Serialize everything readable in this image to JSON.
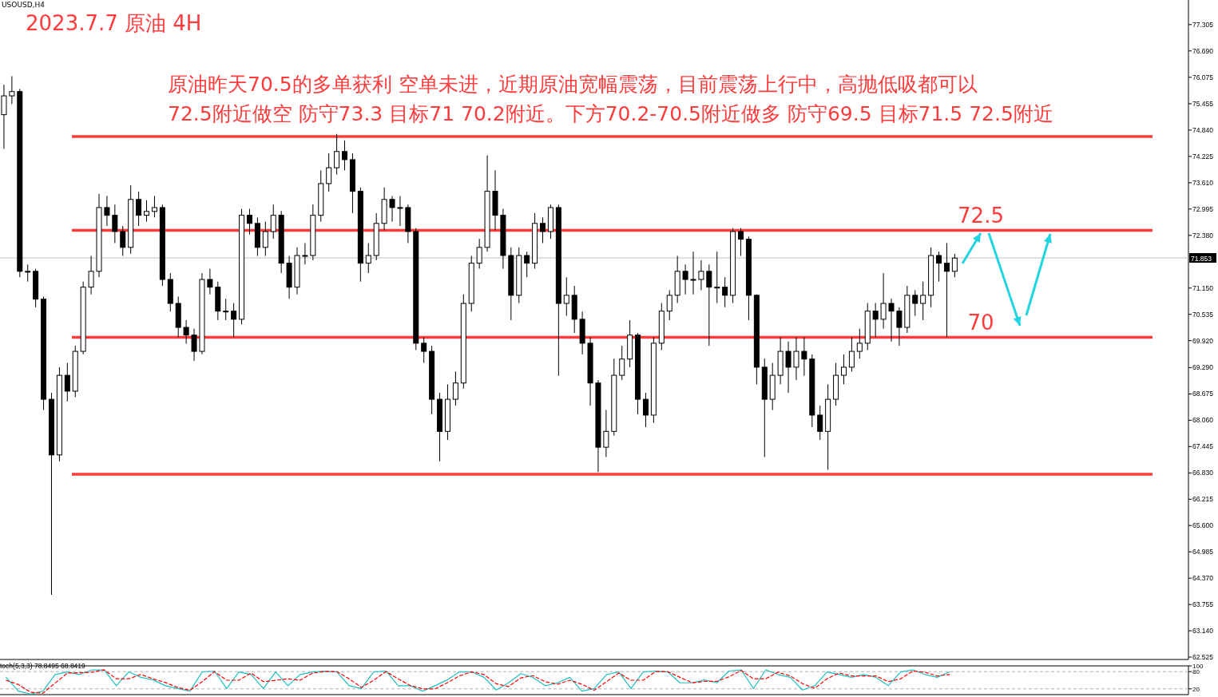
{
  "chart_data": [
    {
      "type": "candlestick",
      "title": "2023.7.7 原油 4H",
      "annotations": [
        "USOUSD,H4",
        "原油昨天70.5的多单获利 空单未进，近期原油宽幅震荡，目前震荡上行中，高抛低吸都可以",
        "72.5附近做空 防守73.3 目标71 70.2附近。下方70.2-70.5附近做多 防守69.5 目标71.5 72.5附近"
      ],
      "categories": [
        null,
        null,
        null,
        null,
        null,
        null,
        null,
        null,
        null,
        null,
        null,
        null,
        null,
        null,
        null,
        null,
        null,
        null,
        null,
        null,
        null,
        null,
        null,
        null,
        null,
        null,
        null,
        null,
        null,
        null,
        null,
        null,
        null,
        null,
        null,
        null,
        null,
        null,
        null,
        null,
        null,
        null,
        null,
        null,
        null,
        null,
        null,
        null,
        null,
        null,
        null,
        null,
        null,
        null,
        null,
        null,
        null,
        null,
        null,
        null,
        null,
        null,
        null,
        null,
        null,
        null,
        null,
        null,
        null,
        null,
        null,
        null,
        null,
        null,
        null,
        null,
        null,
        null,
        null,
        null,
        null,
        null,
        null,
        null,
        null,
        null,
        null,
        null,
        null,
        null,
        null,
        null,
        null,
        null,
        null,
        null,
        null,
        null,
        null,
        null,
        null,
        null,
        null,
        null,
        null,
        null,
        null,
        null,
        null,
        null,
        null,
        null,
        null,
        null,
        null,
        null,
        null,
        null,
        null,
        null,
        null,
        null,
        null,
        null,
        null,
        null,
        null,
        null,
        null,
        null,
        null,
        null,
        null,
        null,
        null,
        null,
        null,
        null,
        null,
        null,
        null,
        null,
        null,
        null,
        null,
        null,
        null,
        null,
        null,
        null
      ],
      "ohlc": [
        [
          75.2,
          75.9,
          74.4,
          75.64
        ],
        [
          75.64,
          76.1,
          75.45,
          75.74
        ],
        [
          75.74,
          75.8,
          71.4,
          71.54
        ],
        [
          71.54,
          71.7,
          71.3,
          71.54
        ],
        [
          71.54,
          71.6,
          70.7,
          70.89
        ],
        [
          70.89,
          70.95,
          68.3,
          68.55
        ],
        [
          68.55,
          68.7,
          63.98,
          67.25
        ],
        [
          67.25,
          69.3,
          67.1,
          69.11
        ],
        [
          69.11,
          69.4,
          68.5,
          68.74
        ],
        [
          68.74,
          69.8,
          68.6,
          69.67
        ],
        [
          69.67,
          71.3,
          69.6,
          71.17
        ],
        [
          71.17,
          71.9,
          71.0,
          71.54
        ],
        [
          71.54,
          73.35,
          71.4,
          73.03
        ],
        [
          73.03,
          73.3,
          72.6,
          72.85
        ],
        [
          72.85,
          73.1,
          72.2,
          72.47
        ],
        [
          72.47,
          72.6,
          71.9,
          72.1
        ],
        [
          72.1,
          73.55,
          71.95,
          73.22
        ],
        [
          73.22,
          73.4,
          72.6,
          72.85
        ],
        [
          72.85,
          73.2,
          72.7,
          72.94
        ],
        [
          72.94,
          73.3,
          72.8,
          73.03
        ],
        [
          73.03,
          73.1,
          71.2,
          71.35
        ],
        [
          71.35,
          71.5,
          70.6,
          70.79
        ],
        [
          70.79,
          70.95,
          70.0,
          70.23
        ],
        [
          70.23,
          70.4,
          69.85,
          70.05
        ],
        [
          70.05,
          70.2,
          69.45,
          69.67
        ],
        [
          69.67,
          71.5,
          69.6,
          71.35
        ],
        [
          71.35,
          71.6,
          71.0,
          71.17
        ],
        [
          71.17,
          71.3,
          70.4,
          70.61
        ],
        [
          70.61,
          70.9,
          70.4,
          70.61
        ],
        [
          70.61,
          70.8,
          70.0,
          70.42
        ],
        [
          70.42,
          73.0,
          70.3,
          72.85
        ],
        [
          72.85,
          73.0,
          72.4,
          72.66
        ],
        [
          72.66,
          72.8,
          71.9,
          72.1
        ],
        [
          72.1,
          72.7,
          71.9,
          72.47
        ],
        [
          72.47,
          73.1,
          72.3,
          72.85
        ],
        [
          72.85,
          72.95,
          71.5,
          71.73
        ],
        [
          71.73,
          71.9,
          70.9,
          71.17
        ],
        [
          71.17,
          72.1,
          71.0,
          71.91
        ],
        [
          71.91,
          72.2,
          71.7,
          71.91
        ],
        [
          71.91,
          73.1,
          71.8,
          72.85
        ],
        [
          72.85,
          73.9,
          72.7,
          73.59
        ],
        [
          73.59,
          74.3,
          73.4,
          73.96
        ],
        [
          73.96,
          74.75,
          73.8,
          74.34
        ],
        [
          74.34,
          74.6,
          73.9,
          74.15
        ],
        [
          74.15,
          74.3,
          72.9,
          73.41
        ],
        [
          73.41,
          73.5,
          71.3,
          71.73
        ],
        [
          71.73,
          72.2,
          71.5,
          71.91
        ],
        [
          71.91,
          72.9,
          71.8,
          72.66
        ],
        [
          72.66,
          73.5,
          72.5,
          73.22
        ],
        [
          73.22,
          73.3,
          72.7,
          73.03
        ],
        [
          73.03,
          73.3,
          72.6,
          73.03
        ],
        [
          73.03,
          73.1,
          72.2,
          72.47
        ],
        [
          72.47,
          72.55,
          69.7,
          69.86
        ],
        [
          69.86,
          70.0,
          69.4,
          69.67
        ],
        [
          69.67,
          69.8,
          68.2,
          68.55
        ],
        [
          68.55,
          68.7,
          67.1,
          67.8
        ],
        [
          67.8,
          68.9,
          67.6,
          68.55
        ],
        [
          68.55,
          69.2,
          68.4,
          68.93
        ],
        [
          68.93,
          71.0,
          68.8,
          70.79
        ],
        [
          70.79,
          71.9,
          70.6,
          71.73
        ],
        [
          71.73,
          72.3,
          71.6,
          72.1
        ],
        [
          72.1,
          74.25,
          72.0,
          73.41
        ],
        [
          73.41,
          73.9,
          72.5,
          72.85
        ],
        [
          72.85,
          73.0,
          71.6,
          71.91
        ],
        [
          71.91,
          72.1,
          70.4,
          70.98
        ],
        [
          70.98,
          72.1,
          70.8,
          71.91
        ],
        [
          71.91,
          72.0,
          71.4,
          71.73
        ],
        [
          71.73,
          72.9,
          71.6,
          72.66
        ],
        [
          72.66,
          72.8,
          72.2,
          72.47
        ],
        [
          72.47,
          73.1,
          72.3,
          73.03
        ],
        [
          73.03,
          73.1,
          69.1,
          70.79
        ],
        [
          70.79,
          71.4,
          70.5,
          70.98
        ],
        [
          70.98,
          71.2,
          70.1,
          70.42
        ],
        [
          70.42,
          70.6,
          69.6,
          69.86
        ],
        [
          69.86,
          70.0,
          68.4,
          68.93
        ],
        [
          68.93,
          69.0,
          66.85,
          67.43
        ],
        [
          67.43,
          68.3,
          67.2,
          67.8
        ],
        [
          67.8,
          69.5,
          67.7,
          69.11
        ],
        [
          69.11,
          69.8,
          69.0,
          69.49
        ],
        [
          69.49,
          70.4,
          69.3,
          70.05
        ],
        [
          70.05,
          70.1,
          68.2,
          68.55
        ],
        [
          68.55,
          68.7,
          67.9,
          68.18
        ],
        [
          68.18,
          70.0,
          68.0,
          69.86
        ],
        [
          69.86,
          70.8,
          69.7,
          70.61
        ],
        [
          70.61,
          71.1,
          70.4,
          70.98
        ],
        [
          70.98,
          71.9,
          70.8,
          71.54
        ],
        [
          71.54,
          71.7,
          71.0,
          71.35
        ],
        [
          71.35,
          72.0,
          71.0,
          71.35
        ],
        [
          71.35,
          71.8,
          71.1,
          71.54
        ],
        [
          71.54,
          71.7,
          69.8,
          71.17
        ],
        [
          71.17,
          72.0,
          70.8,
          71.17
        ],
        [
          71.17,
          71.4,
          70.7,
          70.98
        ],
        [
          70.98,
          72.55,
          70.8,
          72.47
        ],
        [
          72.47,
          72.55,
          71.9,
          72.29
        ],
        [
          72.29,
          72.35,
          70.4,
          70.98
        ],
        [
          70.98,
          71.0,
          68.9,
          69.3
        ],
        [
          69.3,
          69.5,
          67.2,
          68.55
        ],
        [
          68.55,
          69.4,
          68.3,
          69.11
        ],
        [
          69.11,
          70.0,
          68.9,
          69.67
        ],
        [
          69.67,
          69.9,
          68.7,
          69.3
        ],
        [
          69.3,
          70.0,
          69.0,
          69.67
        ],
        [
          69.67,
          70.0,
          69.1,
          69.49
        ],
        [
          69.49,
          69.6,
          67.9,
          68.18
        ],
        [
          68.18,
          68.4,
          67.6,
          67.8
        ],
        [
          67.8,
          68.9,
          66.9,
          68.55
        ],
        [
          68.55,
          69.4,
          68.4,
          69.11
        ],
        [
          69.11,
          69.6,
          68.9,
          69.3
        ],
        [
          69.3,
          70.0,
          69.2,
          69.67
        ],
        [
          69.67,
          70.2,
          69.5,
          69.86
        ],
        [
          69.86,
          70.8,
          69.7,
          70.61
        ],
        [
          70.61,
          70.8,
          70.0,
          70.42
        ],
        [
          70.42,
          71.5,
          70.2,
          70.79
        ],
        [
          70.79,
          70.9,
          69.9,
          70.61
        ],
        [
          70.61,
          70.7,
          69.8,
          70.23
        ],
        [
          70.23,
          71.2,
          70.1,
          70.98
        ],
        [
          70.98,
          71.1,
          70.5,
          70.79
        ],
        [
          70.79,
          71.3,
          70.4,
          70.98
        ],
        [
          70.98,
          72.1,
          70.7,
          71.91
        ],
        [
          71.91,
          72.0,
          71.3,
          71.73
        ],
        [
          71.73,
          72.2,
          70.0,
          71.54
        ],
        [
          71.54,
          71.95,
          71.4,
          71.85
        ],
        null,
        null,
        null,
        null,
        null,
        null,
        null,
        null,
        null,
        null,
        null,
        null,
        null,
        null,
        null,
        null,
        null,
        null,
        null,
        null,
        null,
        null,
        null,
        null,
        null,
        null,
        null,
        null,
        null
      ],
      "color": "#000000",
      "ylim": [
        62.47,
        77.88
      ],
      "yticks": [
        {
          "value": 77.305,
          "label": "77.305"
        },
        {
          "value": 76.69,
          "label": "76.690"
        },
        {
          "value": 76.075,
          "label": "76.075"
        },
        {
          "value": 75.455,
          "label": "75.455"
        },
        {
          "value": 74.84,
          "label": "74.840"
        },
        {
          "value": 74.225,
          "label": "74.225"
        },
        {
          "value": 73.61,
          "label": "73.610"
        },
        {
          "value": 72.995,
          "label": "72.995"
        },
        {
          "value": 72.38,
          "label": "72.380"
        },
        {
          "value": 71.15,
          "label": "71.150"
        },
        {
          "value": 70.535,
          "label": "70.535"
        },
        {
          "value": 69.92,
          "label": "69.920"
        },
        {
          "value": 69.29,
          "label": "69.290"
        },
        {
          "value": 68.675,
          "label": "68.675"
        },
        {
          "value": 68.06,
          "label": "68.060"
        },
        {
          "value": 67.445,
          "label": "67.445"
        },
        {
          "value": 66.83,
          "label": "66.830"
        },
        {
          "value": 66.215,
          "label": "66.215"
        },
        {
          "value": 65.6,
          "label": "65.600"
        },
        {
          "value": 64.985,
          "label": "64.985"
        },
        {
          "value": 64.37,
          "label": "64.370"
        },
        {
          "value": 63.755,
          "label": "63.755"
        },
        {
          "value": 63.14,
          "label": "63.140"
        },
        {
          "value": 62.525,
          "label": "62.525"
        }
      ],
      "ref_lines": [
        {
          "axis": "y",
          "value": 74.69,
          "label": null,
          "color": "#ff3b3b"
        },
        {
          "axis": "y",
          "value": 72.5,
          "label": "72.5",
          "color": "#ff3b3b"
        },
        {
          "axis": "y",
          "value": 70,
          "label": "70",
          "color": "#ff3b3b"
        },
        {
          "axis": "y",
          "value": 66.8,
          "label": null,
          "color": "#ff3b3b"
        },
        {
          "axis": "y",
          "value": 71.853,
          "label": "71.853",
          "color": "#c0c0c0"
        }
      ],
      "grid": false
    },
    {
      "type": "line",
      "title": "toch(5,3,3) 78.8495 68.8419",
      "categories": [
        null,
        null,
        null,
        null,
        null,
        null,
        null,
        null,
        null,
        null,
        null,
        null,
        null,
        null,
        null,
        null,
        null,
        null,
        null,
        null,
        null,
        null,
        null,
        null,
        null,
        null,
        null,
        null,
        null,
        null,
        null,
        null,
        null,
        null,
        null,
        null,
        null,
        null,
        null,
        null,
        null,
        null,
        null,
        null,
        null,
        null,
        null,
        null,
        null,
        null,
        null,
        null,
        null,
        null,
        null,
        null,
        null,
        null,
        null,
        null,
        null,
        null,
        null,
        null,
        null,
        null,
        null,
        null,
        null,
        null,
        null,
        null,
        null,
        null,
        null,
        null,
        null,
        null,
        null,
        null,
        null,
        null,
        null,
        null,
        null,
        null,
        null,
        null,
        null,
        null,
        null,
        null,
        null,
        null,
        null,
        null,
        null
      ],
      "series": [
        {
          "color": "#20c0c0",
          "line_style": "solid",
          "values": [
            60,
            12,
            2,
            12,
            70,
            79,
            70,
            86,
            86,
            31,
            79,
            60,
            51,
            31,
            21,
            12,
            79,
            82,
            21,
            79,
            70,
            21,
            79,
            31,
            70,
            79,
            82,
            79,
            31,
            21,
            79,
            82,
            31,
            31,
            12,
            31,
            51,
            79,
            79,
            60,
            16,
            41,
            73,
            60,
            31,
            41,
            60,
            12,
            21,
            70,
            79,
            21,
            79,
            82,
            79,
            41,
            41,
            51,
            41,
            82,
            86,
            21,
            86,
            70,
            60,
            16,
            31,
            79,
            70,
            60,
            70,
            60,
            31,
            79,
            86,
            70,
            60,
            79,
            null,
            null,
            null,
            null,
            null,
            null,
            null,
            null,
            null,
            null,
            null,
            null,
            null,
            null,
            null,
            null,
            null,
            null,
            null
          ]
        },
        {
          "color": "#ff0000",
          "line_style": "dashed",
          "values": [
            50,
            35,
            8,
            5,
            40,
            75,
            76,
            78,
            86,
            55,
            55,
            70,
            55,
            42,
            25,
            15,
            45,
            80,
            50,
            50,
            75,
            45,
            50,
            55,
            50,
            75,
            80,
            80,
            55,
            25,
            50,
            80,
            55,
            31,
            20,
            20,
            41,
            65,
            79,
            70,
            38,
            28,
            58,
            66,
            45,
            36,
            50,
            36,
            15,
            45,
            75,
            50,
            50,
            80,
            80,
            60,
            41,
            46,
            46,
            62,
            84,
            55,
            55,
            78,
            65,
            38,
            22,
            55,
            75,
            65,
            65,
            65,
            45,
            55,
            82,
            78,
            65,
            70,
            null,
            null,
            null,
            null,
            null,
            null,
            null,
            null,
            null,
            null,
            null,
            null,
            null,
            null,
            null,
            null,
            null,
            null,
            null
          ]
        }
      ],
      "ylim": [
        0,
        100
      ],
      "yticks": [
        100,
        80,
        20
      ],
      "ref_lines": [
        {
          "axis": "y",
          "value": 80,
          "label": null,
          "color": "#b0b0b0",
          "line_style": "dashed"
        },
        {
          "axis": "y",
          "value": 20,
          "label": null,
          "color": "#b0b0b0",
          "line_style": "dashed"
        }
      ],
      "grid": false,
      "marker": "none"
    }
  ]
}
